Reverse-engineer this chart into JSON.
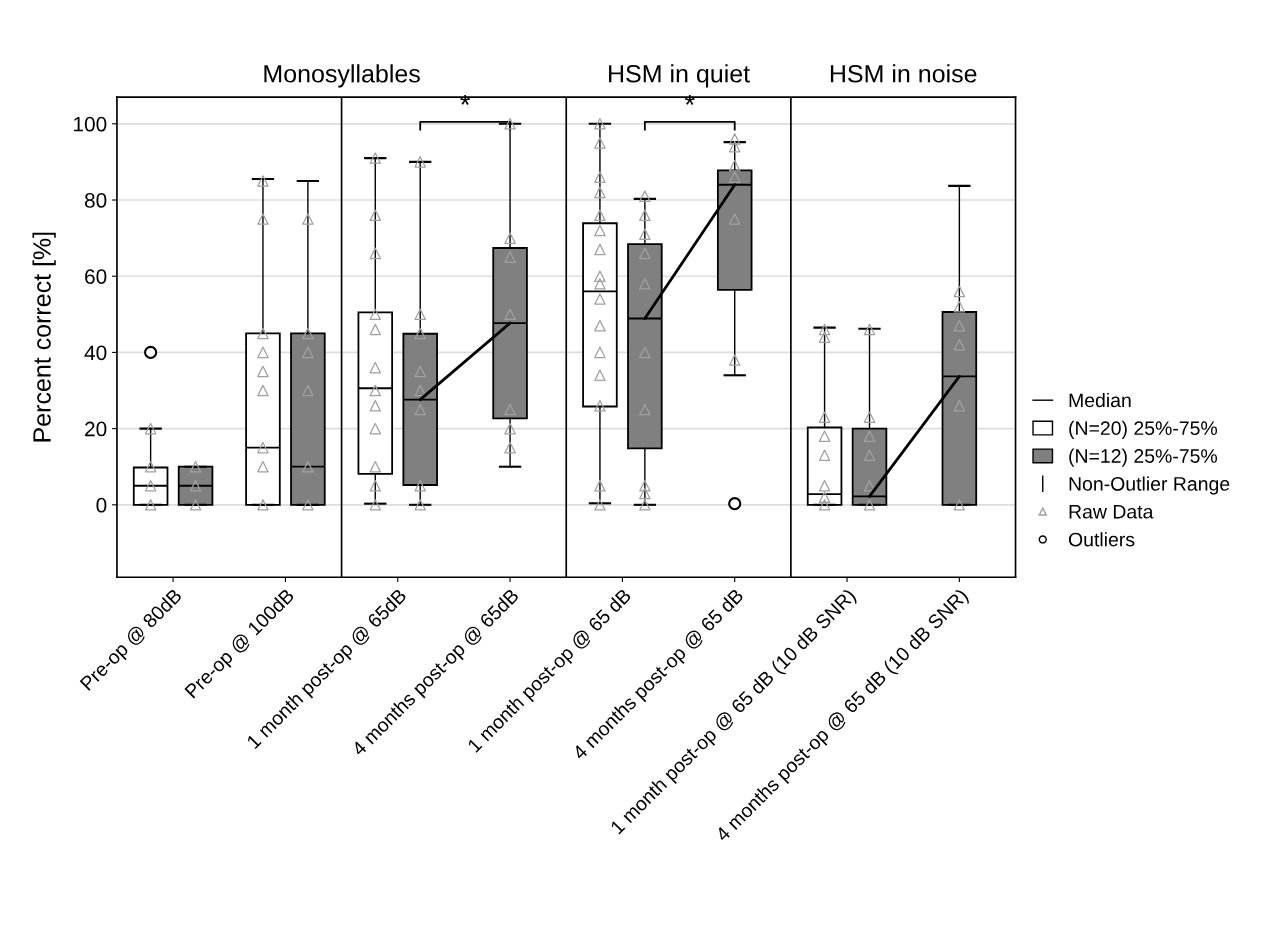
{
  "chart_data": {
    "type": "box",
    "ylabel": "Percent correct [%]",
    "categories": [
      "Pre-op @ 80dB",
      "Pre-op @ 100dB",
      "1 month post-op @ 65dB",
      "4 months post-op @ 65dB",
      "1 month post-op @ 65 dB",
      "4 months post-op @ 65 dB",
      "1 month post-op @ 65 dB (10 dB SNR)",
      "4 months post-op @ 65 dB (10 dB SNR)"
    ],
    "ylim": [
      -19,
      107
    ],
    "yticks": [
      0,
      20,
      40,
      60,
      80,
      100
    ],
    "grid": "y",
    "legend": "right",
    "marker": "triangle",
    "annotations": [
      "Monosyllables",
      "HSM in quiet",
      "HSM in noise",
      "*",
      "*",
      "Median",
      "Non-Outlier Range",
      "Outliers"
    ],
    "series": [
      {
        "name": "(N=20) 25%-75%",
        "color": "#ffffff",
        "boxes": [
          {
            "low": 0,
            "q1": 0,
            "median": 5,
            "q3": 9.8,
            "high": 20,
            "outliers": [
              40
            ]
          },
          {
            "low": 0,
            "q1": 0,
            "median": 15,
            "q3": 45,
            "high": 85.5
          },
          {
            "low": 0.3,
            "q1": 8.1,
            "median": 30.6,
            "q3": 50.5,
            "high": 91
          },
          null,
          {
            "low": 0.4,
            "q1": 25.8,
            "median": 56,
            "q3": 73.9,
            "high": 100
          },
          null,
          {
            "low": 0,
            "q1": 0,
            "median": 2.8,
            "q3": 20.3,
            "high": 46.5
          },
          null
        ]
      },
      {
        "name": "(N=12) 25%-75%",
        "color": "#808080",
        "boxes": [
          {
            "low": 0,
            "q1": 0,
            "median": 5,
            "q3": 10,
            "high": 10
          },
          {
            "low": 0,
            "q1": 0,
            "median": 10,
            "q3": 45,
            "high": 85
          },
          {
            "low": 0,
            "q1": 5.2,
            "median": 27.6,
            "q3": 44.9,
            "high": 90
          },
          {
            "low": 10,
            "q1": 22.7,
            "median": 47.7,
            "q3": 67.4,
            "high": 100
          },
          {
            "low": 0,
            "q1": 14.8,
            "median": 48.9,
            "q3": 68.4,
            "high": 80.3
          },
          {
            "low": 34,
            "q1": 56.4,
            "median": 84,
            "q3": 87.8,
            "high": 95.2,
            "outliers": [
              0.3
            ]
          },
          {
            "low": 0,
            "q1": 0,
            "median": 2.2,
            "q3": 20,
            "high": 46.2
          },
          {
            "low": 0,
            "q1": 0,
            "median": 33.7,
            "q3": 50.6,
            "high": 83.7
          }
        ]
      },
      {
        "name": "Raw Data",
        "type": "scatter",
        "color": "#a0a0a0",
        "x": [
          "Pre-op @ 80dB",
          "Pre-op @ 80dB",
          "Pre-op @ 80dB",
          "Pre-op @ 80dB",
          "Pre-op @ 100dB",
          "Pre-op @ 100dB",
          "Pre-op @ 100dB",
          "Pre-op @ 100dB",
          "Pre-op @ 100dB",
          "Pre-op @ 100dB",
          "Pre-op @ 100dB",
          "Pre-op @ 100dB",
          "Pre-op @ 100dB",
          "1 month post-op @ 65dB",
          "1 month post-op @ 65dB",
          "1 month post-op @ 65dB",
          "1 month post-op @ 65dB",
          "1 month post-op @ 65dB",
          "1 month post-op @ 65dB",
          "1 month post-op @ 65dB",
          "1 month post-op @ 65dB",
          "1 month post-op @ 65dB",
          "1 month post-op @ 65dB",
          "1 month post-op @ 65dB",
          "1 month post-op @ 65dB",
          "1 month post-op @ 65 dB",
          "1 month post-op @ 65 dB",
          "1 month post-op @ 65 dB",
          "1 month post-op @ 65 dB",
          "1 month post-op @ 65 dB",
          "1 month post-op @ 65 dB",
          "1 month post-op @ 65 dB",
          "1 month post-op @ 65 dB",
          "1 month post-op @ 65 dB",
          "1 month post-op @ 65 dB",
          "1 month post-op @ 65 dB",
          "1 month post-op @ 65 dB",
          "1 month post-op @ 65 dB",
          "1 month post-op @ 65 dB",
          "1 month post-op @ 65 dB",
          "1 month post-op @ 65 dB",
          "1 month post-op @ 65 dB (10 dB SNR)",
          "1 month post-op @ 65 dB (10 dB SNR)",
          "1 month post-op @ 65 dB (10 dB SNR)",
          "1 month post-op @ 65 dB (10 dB SNR)",
          "1 month post-op @ 65 dB (10 dB SNR)",
          "1 month post-op @ 65 dB (10 dB SNR)",
          "1 month post-op @ 65 dB (10 dB SNR)",
          "1 month post-op @ 65 dB (10 dB SNR)"
        ],
        "values": [
          0,
          5,
          10,
          20,
          0,
          10,
          15,
          30,
          35,
          40,
          45,
          75,
          85,
          91,
          76,
          66,
          50,
          46,
          36,
          30,
          26,
          20,
          10,
          5,
          0,
          100,
          95,
          86,
          82,
          76,
          72,
          67,
          60,
          58,
          54,
          47,
          40,
          34,
          26,
          5,
          0,
          46,
          44,
          23,
          18,
          13,
          5,
          2,
          0
        ]
      },
      {
        "type": "scatter",
        "color": "#a0a0a0",
        "x": [
          "Pre-op @ 80dB",
          "Pre-op @ 80dB",
          "Pre-op @ 80dB",
          "Pre-op @ 100dB",
          "Pre-op @ 100dB",
          "Pre-op @ 100dB",
          "Pre-op @ 100dB",
          "Pre-op @ 100dB",
          "Pre-op @ 100dB",
          "1 month post-op @ 65dB",
          "1 month post-op @ 65dB",
          "1 month post-op @ 65dB",
          "1 month post-op @ 65dB",
          "1 month post-op @ 65dB",
          "1 month post-op @ 65dB",
          "1 month post-op @ 65dB",
          "1 month post-op @ 65dB",
          "4 months post-op @ 65dB",
          "4 months post-op @ 65dB",
          "4 months post-op @ 65dB",
          "4 months post-op @ 65dB",
          "4 months post-op @ 65dB",
          "4 months post-op @ 65dB",
          "4 months post-op @ 65dB",
          "1 month post-op @ 65 dB",
          "1 month post-op @ 65 dB",
          "1 month post-op @ 65 dB",
          "1 month post-op @ 65 dB",
          "1 month post-op @ 65 dB",
          "1 month post-op @ 65 dB",
          "1 month post-op @ 65 dB",
          "1 month post-op @ 65 dB",
          "1 month post-op @ 65 dB",
          "1 month post-op @ 65 dB",
          "4 months post-op @ 65 dB",
          "4 months post-op @ 65 dB",
          "4 months post-op @ 65 dB",
          "4 months post-op @ 65 dB",
          "4 months post-op @ 65 dB",
          "4 months post-op @ 65 dB",
          "1 month post-op @ 65 dB (10 dB SNR)",
          "1 month post-op @ 65 dB (10 dB SNR)",
          "1 month post-op @ 65 dB (10 dB SNR)",
          "1 month post-op @ 65 dB (10 dB SNR)",
          "1 month post-op @ 65 dB (10 dB SNR)",
          "1 month post-op @ 65 dB (10 dB SNR)",
          "4 months post-op @ 65 dB (10 dB SNR)",
          "4 months post-op @ 65 dB (10 dB SNR)",
          "4 months post-op @ 65 dB (10 dB SNR)",
          "4 months post-op @ 65 dB (10 dB SNR)",
          "4 months post-op @ 65 dB (10 dB SNR)",
          "4 months post-op @ 65 dB (10 dB SNR)"
        ],
        "values": [
          0,
          5,
          10,
          0,
          10,
          30,
          40,
          45,
          75,
          90,
          50,
          45,
          35,
          30,
          25,
          5,
          0,
          100,
          70,
          65,
          50,
          25,
          20,
          15,
          81,
          76,
          71,
          66,
          58,
          40,
          25,
          5,
          3,
          0,
          96,
          94,
          89,
          86,
          75,
          38,
          46,
          23,
          18,
          13,
          5,
          0,
          56,
          52,
          47,
          42,
          26,
          0
        ]
      }
    ]
  }
}
